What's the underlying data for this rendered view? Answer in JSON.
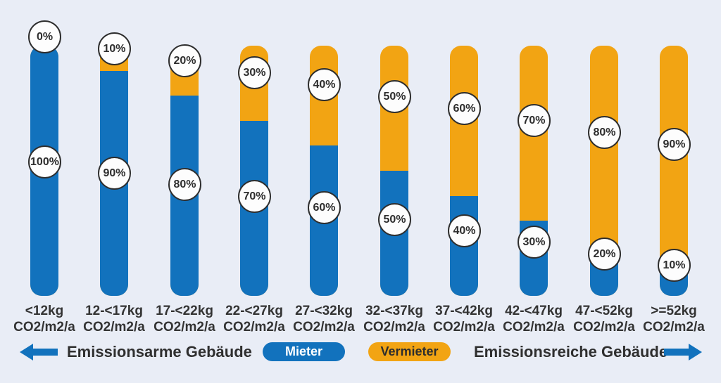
{
  "background_color": "#e9edf6",
  "colors": {
    "mieter_blue": "#1272bd",
    "vermieter_orange": "#f2a413",
    "text_dark": "#333333",
    "badge_border": "#2e2e2e",
    "badge_fill": "#fdfdfd"
  },
  "chart_data": {
    "type": "bar",
    "stacked": true,
    "orientation": "vertical",
    "unit": "%",
    "ylim": [
      0,
      100
    ],
    "grid": false,
    "legend_position": "bottom",
    "annotations": "every segment labeled with its percentage inside a white circular badge",
    "categories": [
      {
        "line1": "<12kg",
        "line2": "CO2/m2/a"
      },
      {
        "line1": "12-<17kg",
        "line2": "CO2/m2/a"
      },
      {
        "line1": "17-<22kg",
        "line2": "CO2/m2/a"
      },
      {
        "line1": "22-<27kg",
        "line2": "CO2/m2/a"
      },
      {
        "line1": "27-<32kg",
        "line2": "CO2/m2/a"
      },
      {
        "line1": "32-<37kg",
        "line2": "CO2/m2/a"
      },
      {
        "line1": "37-<42kg",
        "line2": "CO2/m2/a"
      },
      {
        "line1": "42-<47kg",
        "line2": "CO2/m2/a"
      },
      {
        "line1": "47-<52kg",
        "line2": "CO2/m2/a"
      },
      {
        "line1": ">=52kg",
        "line2": "CO2/m2/a"
      }
    ],
    "series": [
      {
        "name": "Mieter",
        "color": "#1272bd",
        "values": [
          100,
          90,
          80,
          70,
          60,
          50,
          40,
          30,
          20,
          10
        ]
      },
      {
        "name": "Vermieter",
        "color": "#f2a413",
        "values": [
          0,
          10,
          20,
          30,
          40,
          50,
          60,
          70,
          80,
          90
        ]
      }
    ]
  },
  "footer": {
    "left_axis_label": "Emissionsarme Gebäude",
    "right_axis_label": "Emissionsreiche Gebäude",
    "legend": {
      "mieter_label": "Mieter",
      "vermieter_label": "Vermieter"
    }
  }
}
